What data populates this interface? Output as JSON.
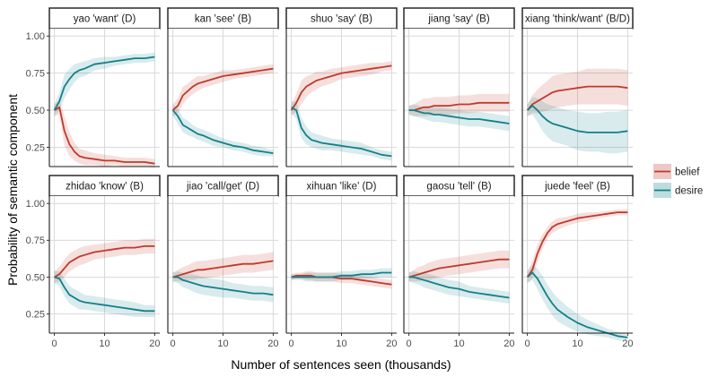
{
  "chart_data": {
    "type": "line",
    "xlabel": "Number of sentences seen (thousands)",
    "ylabel": "Probability of semantic component",
    "xlim": [
      -1,
      21
    ],
    "ylim": [
      0.12,
      1.05
    ],
    "xticks": [
      0,
      10,
      20
    ],
    "yticks": [
      0.25,
      0.5,
      0.75,
      1.0
    ],
    "ytick_labels": [
      "0.25",
      "0.50",
      "0.75",
      "1.00"
    ],
    "grid": true,
    "legend_position": "right",
    "colors": {
      "belief": "#c0392b",
      "desire": "#138089"
    },
    "legend": [
      {
        "key": "belief",
        "label": "belief"
      },
      {
        "key": "desire",
        "label": "desire"
      }
    ],
    "x": [
      0,
      1,
      2,
      3,
      4,
      5,
      6,
      8,
      10,
      12,
      14,
      16,
      18,
      20
    ],
    "panels": [
      {
        "title": "yao 'want' (D)",
        "series": [
          {
            "key": "belief",
            "values": [
              0.5,
              0.52,
              0.36,
              0.27,
              0.22,
              0.19,
              0.18,
              0.17,
              0.16,
              0.16,
              0.15,
              0.15,
              0.15,
              0.14
            ],
            "ci": [
              0.04,
              0.05,
              0.1,
              0.08,
              0.06,
              0.05,
              0.05,
              0.04,
              0.04,
              0.03,
              0.03,
              0.03,
              0.03,
              0.03
            ]
          },
          {
            "key": "desire",
            "values": [
              0.5,
              0.56,
              0.66,
              0.71,
              0.75,
              0.77,
              0.78,
              0.81,
              0.82,
              0.83,
              0.84,
              0.85,
              0.85,
              0.86
            ],
            "ci": [
              0.04,
              0.06,
              0.08,
              0.07,
              0.06,
              0.05,
              0.05,
              0.04,
              0.04,
              0.03,
              0.03,
              0.03,
              0.03,
              0.03
            ]
          }
        ]
      },
      {
        "title": "kan 'see' (B)",
        "series": [
          {
            "key": "belief",
            "values": [
              0.5,
              0.53,
              0.6,
              0.63,
              0.66,
              0.68,
              0.69,
              0.71,
              0.73,
              0.74,
              0.75,
              0.76,
              0.77,
              0.78
            ],
            "ci": [
              0.04,
              0.05,
              0.06,
              0.05,
              0.05,
              0.05,
              0.04,
              0.04,
              0.04,
              0.03,
              0.03,
              0.03,
              0.03,
              0.03
            ]
          },
          {
            "key": "desire",
            "values": [
              0.5,
              0.46,
              0.4,
              0.38,
              0.36,
              0.34,
              0.33,
              0.3,
              0.28,
              0.26,
              0.25,
              0.23,
              0.22,
              0.21
            ],
            "ci": [
              0.04,
              0.05,
              0.05,
              0.05,
              0.04,
              0.04,
              0.04,
              0.04,
              0.03,
              0.03,
              0.03,
              0.03,
              0.03,
              0.02
            ]
          }
        ]
      },
      {
        "title": "shuo 'say' (B)",
        "series": [
          {
            "key": "belief",
            "values": [
              0.5,
              0.55,
              0.62,
              0.66,
              0.68,
              0.7,
              0.71,
              0.73,
              0.75,
              0.76,
              0.77,
              0.78,
              0.79,
              0.8
            ],
            "ci": [
              0.04,
              0.06,
              0.08,
              0.07,
              0.06,
              0.06,
              0.05,
              0.05,
              0.04,
              0.04,
              0.04,
              0.04,
              0.03,
              0.03
            ]
          },
          {
            "key": "desire",
            "values": [
              0.52,
              0.5,
              0.38,
              0.33,
              0.3,
              0.29,
              0.28,
              0.27,
              0.26,
              0.25,
              0.24,
              0.22,
              0.2,
              0.19
            ],
            "ci": [
              0.04,
              0.06,
              0.07,
              0.06,
              0.05,
              0.05,
              0.05,
              0.04,
              0.04,
              0.04,
              0.04,
              0.03,
              0.03,
              0.03
            ]
          }
        ]
      },
      {
        "title": "jiang 'say' (B)",
        "series": [
          {
            "key": "belief",
            "values": [
              0.5,
              0.5,
              0.51,
              0.52,
              0.52,
              0.53,
              0.53,
              0.53,
              0.54,
              0.54,
              0.55,
              0.55,
              0.55,
              0.55
            ],
            "ci": [
              0.03,
              0.04,
              0.05,
              0.06,
              0.06,
              0.06,
              0.06,
              0.06,
              0.06,
              0.06,
              0.06,
              0.06,
              0.06,
              0.06
            ]
          },
          {
            "key": "desire",
            "values": [
              0.5,
              0.5,
              0.49,
              0.48,
              0.48,
              0.47,
              0.47,
              0.46,
              0.45,
              0.44,
              0.44,
              0.43,
              0.42,
              0.41
            ],
            "ci": [
              0.03,
              0.04,
              0.04,
              0.04,
              0.05,
              0.05,
              0.05,
              0.05,
              0.05,
              0.05,
              0.05,
              0.05,
              0.05,
              0.05
            ]
          }
        ]
      },
      {
        "title": "xiang 'think/want' (B/D)",
        "series": [
          {
            "key": "belief",
            "values": [
              0.5,
              0.54,
              0.56,
              0.58,
              0.6,
              0.62,
              0.63,
              0.64,
              0.65,
              0.66,
              0.66,
              0.66,
              0.66,
              0.65
            ],
            "ci": [
              0.04,
              0.06,
              0.08,
              0.09,
              0.1,
              0.11,
              0.11,
              0.11,
              0.11,
              0.12,
              0.12,
              0.12,
              0.12,
              0.12
            ]
          },
          {
            "key": "desire",
            "values": [
              0.5,
              0.53,
              0.5,
              0.46,
              0.43,
              0.41,
              0.4,
              0.38,
              0.36,
              0.35,
              0.35,
              0.35,
              0.35,
              0.36
            ],
            "ci": [
              0.04,
              0.06,
              0.08,
              0.1,
              0.11,
              0.12,
              0.12,
              0.12,
              0.13,
              0.13,
              0.13,
              0.14,
              0.14,
              0.14
            ]
          }
        ]
      },
      {
        "title": "zhidao 'know' (B)",
        "series": [
          {
            "key": "belief",
            "values": [
              0.5,
              0.52,
              0.56,
              0.6,
              0.62,
              0.64,
              0.65,
              0.67,
              0.68,
              0.69,
              0.7,
              0.7,
              0.71,
              0.71
            ],
            "ci": [
              0.04,
              0.05,
              0.06,
              0.06,
              0.06,
              0.06,
              0.06,
              0.05,
              0.05,
              0.05,
              0.05,
              0.05,
              0.05,
              0.05
            ]
          },
          {
            "key": "desire",
            "values": [
              0.5,
              0.49,
              0.43,
              0.38,
              0.36,
              0.34,
              0.33,
              0.32,
              0.31,
              0.3,
              0.29,
              0.28,
              0.27,
              0.27
            ],
            "ci": [
              0.04,
              0.05,
              0.06,
              0.06,
              0.06,
              0.06,
              0.05,
              0.05,
              0.05,
              0.05,
              0.05,
              0.05,
              0.04,
              0.04
            ]
          }
        ]
      },
      {
        "title": "jiao 'call/get' (D)",
        "series": [
          {
            "key": "belief",
            "values": [
              0.5,
              0.51,
              0.52,
              0.53,
              0.54,
              0.55,
              0.55,
              0.56,
              0.57,
              0.58,
              0.59,
              0.59,
              0.6,
              0.61
            ],
            "ci": [
              0.03,
              0.04,
              0.05,
              0.05,
              0.06,
              0.06,
              0.06,
              0.06,
              0.06,
              0.06,
              0.06,
              0.06,
              0.06,
              0.06
            ]
          },
          {
            "key": "desire",
            "values": [
              0.5,
              0.5,
              0.48,
              0.47,
              0.46,
              0.45,
              0.44,
              0.43,
              0.42,
              0.41,
              0.4,
              0.39,
              0.39,
              0.38
            ],
            "ci": [
              0.03,
              0.04,
              0.05,
              0.05,
              0.06,
              0.06,
              0.06,
              0.06,
              0.06,
              0.05,
              0.05,
              0.05,
              0.05,
              0.05
            ]
          }
        ]
      },
      {
        "title": "xihuan 'like' (D)",
        "series": [
          {
            "key": "belief",
            "values": [
              0.5,
              0.51,
              0.51,
              0.51,
              0.51,
              0.5,
              0.5,
              0.5,
              0.49,
              0.49,
              0.48,
              0.47,
              0.46,
              0.45
            ],
            "ci": [
              0.02,
              0.02,
              0.02,
              0.03,
              0.03,
              0.03,
              0.03,
              0.03,
              0.03,
              0.03,
              0.03,
              0.03,
              0.03,
              0.03
            ]
          },
          {
            "key": "desire",
            "values": [
              0.5,
              0.5,
              0.5,
              0.5,
              0.5,
              0.5,
              0.5,
              0.5,
              0.51,
              0.51,
              0.52,
              0.52,
              0.53,
              0.53
            ],
            "ci": [
              0.02,
              0.02,
              0.02,
              0.03,
              0.03,
              0.03,
              0.03,
              0.03,
              0.03,
              0.03,
              0.03,
              0.03,
              0.03,
              0.03
            ]
          }
        ]
      },
      {
        "title": "gaosu 'tell' (B)",
        "series": [
          {
            "key": "belief",
            "values": [
              0.5,
              0.51,
              0.52,
              0.53,
              0.54,
              0.55,
              0.56,
              0.57,
              0.58,
              0.59,
              0.6,
              0.61,
              0.62,
              0.62
            ],
            "ci": [
              0.03,
              0.04,
              0.05,
              0.05,
              0.06,
              0.06,
              0.06,
              0.06,
              0.06,
              0.06,
              0.06,
              0.06,
              0.06,
              0.06
            ]
          },
          {
            "key": "desire",
            "values": [
              0.5,
              0.5,
              0.49,
              0.48,
              0.47,
              0.46,
              0.45,
              0.43,
              0.42,
              0.4,
              0.39,
              0.38,
              0.37,
              0.36
            ],
            "ci": [
              0.03,
              0.04,
              0.04,
              0.05,
              0.05,
              0.05,
              0.05,
              0.05,
              0.05,
              0.04,
              0.04,
              0.04,
              0.04,
              0.04
            ]
          }
        ]
      },
      {
        "title": "juede 'feel' (B)",
        "series": [
          {
            "key": "belief",
            "values": [
              0.5,
              0.55,
              0.66,
              0.74,
              0.8,
              0.84,
              0.86,
              0.88,
              0.9,
              0.91,
              0.92,
              0.93,
              0.94,
              0.94
            ],
            "ci": [
              0.04,
              0.06,
              0.06,
              0.05,
              0.04,
              0.04,
              0.04,
              0.03,
              0.03,
              0.03,
              0.02,
              0.02,
              0.02,
              0.02
            ]
          },
          {
            "key": "desire",
            "values": [
              0.5,
              0.53,
              0.49,
              0.43,
              0.37,
              0.32,
              0.28,
              0.23,
              0.19,
              0.16,
              0.14,
              0.12,
              0.1,
              0.09
            ],
            "ci": [
              0.04,
              0.05,
              0.07,
              0.08,
              0.08,
              0.08,
              0.08,
              0.07,
              0.06,
              0.05,
              0.04,
              0.03,
              0.03,
              0.02
            ]
          }
        ]
      }
    ]
  }
}
